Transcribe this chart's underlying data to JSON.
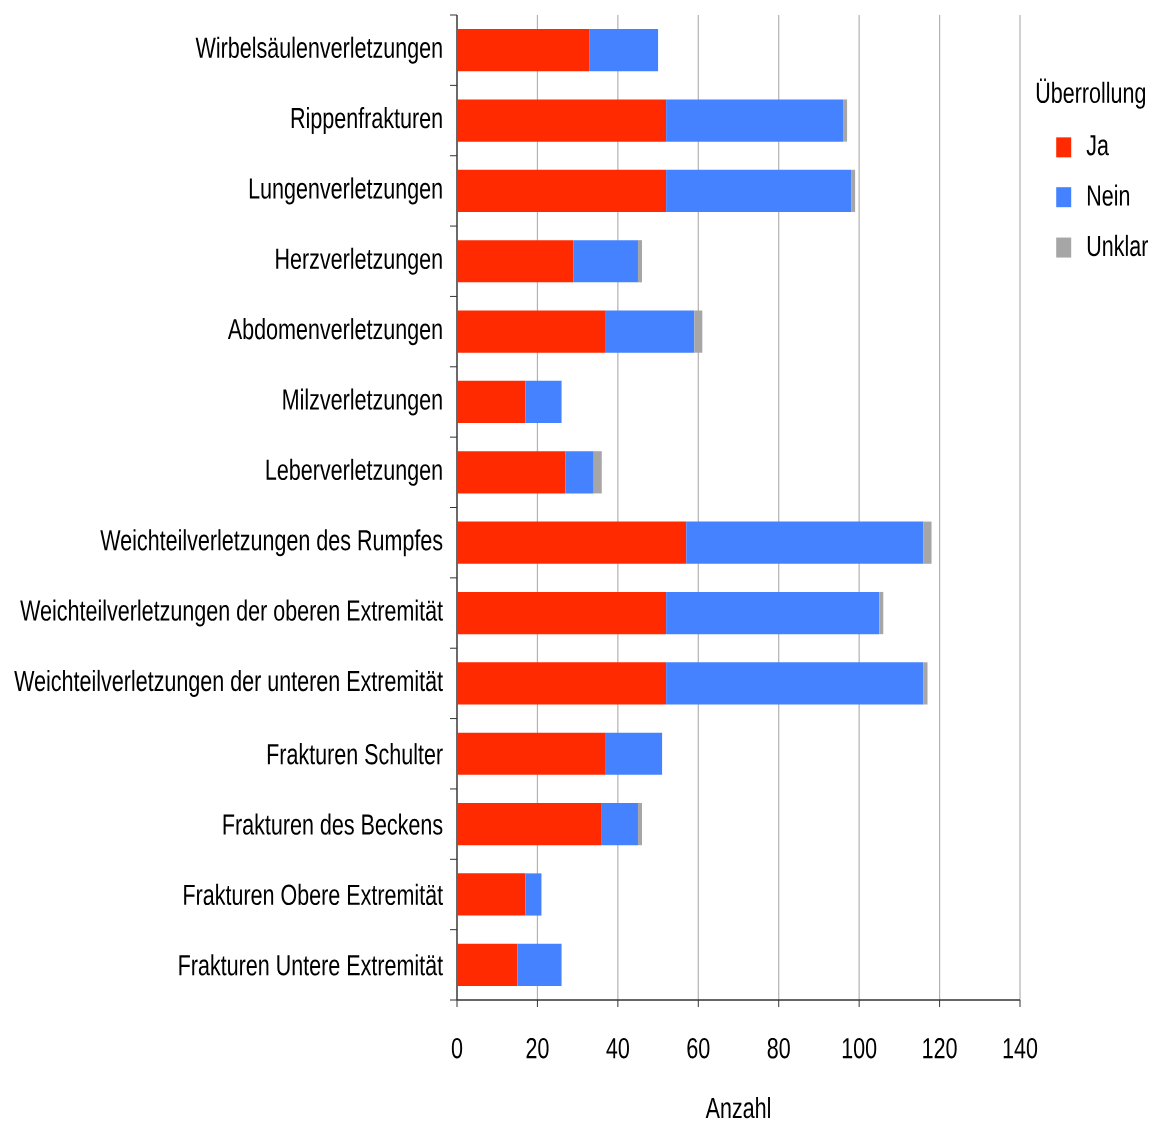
{
  "chart_data": {
    "type": "bar",
    "orientation": "horizontal",
    "stacked": true,
    "xlabel": "Anzahl",
    "legend_title": "Überrollung",
    "categories": [
      "Wirbelsäulenverletzungen",
      "Rippenfrakturen",
      "Lungenverletzungen",
      "Herzverletzungen",
      "Abdomenverletzungen",
      "Milzverletzungen",
      "Leberverletzungen",
      "Weichteilverletzungen des Rumpfes",
      "Weichteilverletzungen der oberen Extremität",
      "Weichteilverletzungen der unteren Extremität",
      "Frakturen Schulter",
      "Frakturen des Beckens",
      "Frakturen Obere Extremität",
      "Frakturen Untere Extremität"
    ],
    "series": [
      {
        "name": "Ja",
        "color": "#ff2a00",
        "values": [
          33,
          52,
          52,
          29,
          37,
          17,
          27,
          57,
          52,
          52,
          37,
          36,
          17,
          15
        ]
      },
      {
        "name": "Nein",
        "color": "#4582ff",
        "values": [
          17,
          44,
          46,
          16,
          22,
          9,
          7,
          59,
          53,
          64,
          14,
          9,
          4,
          11
        ]
      },
      {
        "name": "Unklar",
        "color": "#a6a6a6",
        "values": [
          0,
          1,
          1,
          1,
          2,
          0,
          2,
          2,
          1,
          1,
          0,
          1,
          0,
          0
        ]
      }
    ],
    "xlim": [
      0,
      140
    ],
    "xticks": [
      0,
      20,
      40,
      60,
      80,
      100,
      120,
      140
    ],
    "grid": "x",
    "legend": "top right"
  }
}
